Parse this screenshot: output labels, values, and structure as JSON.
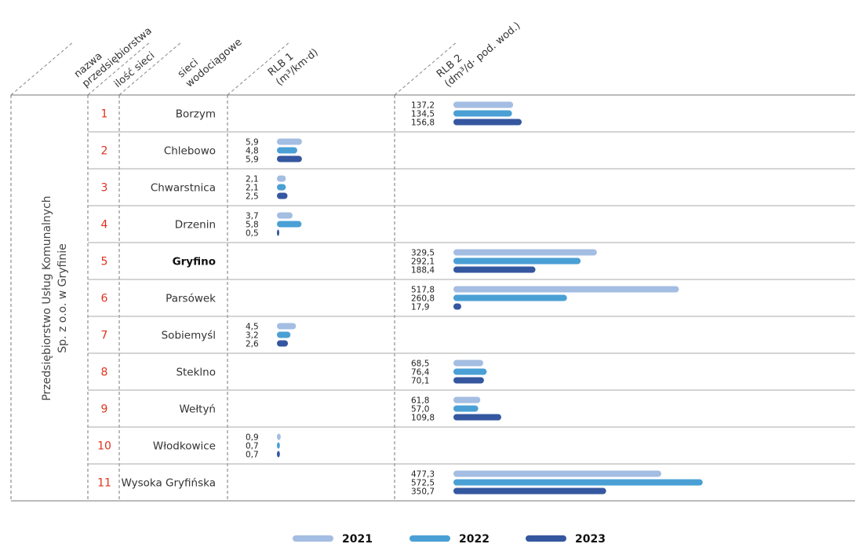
{
  "headers": {
    "company_line1": "nazwa",
    "company_line2": "przedsiębiorstwa",
    "count": "ilość sieci",
    "networks_line1": "sieci",
    "networks_line2": "wodociągowe",
    "rlb1_line1": "RLB 1",
    "rlb1_line2": "(m³/km·d)",
    "rlb2_line1": "RLB 2",
    "rlb2_line2": "(dm³/d· pod. wod.)"
  },
  "entity": {
    "line1": "Przedsiębiorstwo Usług Komunalnych",
    "line2": "Sp. z o.o. w Gryfinie"
  },
  "colors": {
    "2021": "#a4bde2",
    "2022": "#4aa0d5",
    "2023": "#34579f",
    "index": "#e0321e"
  },
  "chart_data": {
    "type": "bar",
    "orientation": "horizontal",
    "series_names": [
      "2021",
      "2022",
      "2023"
    ],
    "rows": [
      {
        "index": "1",
        "name": "Borzym",
        "bold": false,
        "rlb1": null,
        "rlb1_labels": null,
        "rlb2": [
          137.2,
          134.5,
          156.8
        ],
        "rlb2_labels": [
          "137,2",
          "134,5",
          "156,8"
        ]
      },
      {
        "index": "2",
        "name": "Chlebowo",
        "bold": false,
        "rlb1": [
          5.9,
          4.8,
          5.9
        ],
        "rlb1_labels": [
          "5,9",
          "4,8",
          "5,9"
        ],
        "rlb2": null,
        "rlb2_labels": null
      },
      {
        "index": "3",
        "name": "Chwarstnica",
        "bold": false,
        "rlb1": [
          2.1,
          2.1,
          2.5
        ],
        "rlb1_labels": [
          "2,1",
          "2,1",
          "2,5"
        ],
        "rlb2": null,
        "rlb2_labels": null
      },
      {
        "index": "4",
        "name": "Drzenin",
        "bold": false,
        "rlb1": [
          3.7,
          5.8,
          0.5
        ],
        "rlb1_labels": [
          "3,7",
          "5,8",
          "0,5"
        ],
        "rlb2": null,
        "rlb2_labels": null
      },
      {
        "index": "5",
        "name": "Gryfino",
        "bold": true,
        "rlb1": null,
        "rlb1_labels": null,
        "rlb2": [
          329.5,
          292.1,
          188.4
        ],
        "rlb2_labels": [
          "329,5",
          "292,1",
          "188,4"
        ]
      },
      {
        "index": "6",
        "name": "Parsówek",
        "bold": false,
        "rlb1": null,
        "rlb1_labels": null,
        "rlb2": [
          517.8,
          260.8,
          17.9
        ],
        "rlb2_labels": [
          "517,8",
          "260,8",
          "17,9"
        ]
      },
      {
        "index": "7",
        "name": "Sobiemyśl",
        "bold": false,
        "rlb1": [
          4.5,
          3.2,
          2.6
        ],
        "rlb1_labels": [
          "4,5",
          "3,2",
          "2,6"
        ],
        "rlb2": null,
        "rlb2_labels": null
      },
      {
        "index": "8",
        "name": "Steklno",
        "bold": false,
        "rlb1": null,
        "rlb1_labels": null,
        "rlb2": [
          68.5,
          76.4,
          70.1
        ],
        "rlb2_labels": [
          "68,5",
          "76,4",
          "70,1"
        ]
      },
      {
        "index": "9",
        "name": "Wełtyń",
        "bold": false,
        "rlb1": null,
        "rlb1_labels": null,
        "rlb2": [
          61.8,
          57.0,
          109.8
        ],
        "rlb2_labels": [
          "61,8",
          "57,0",
          "109,8"
        ]
      },
      {
        "index": "10",
        "name": "Włodkowice",
        "bold": false,
        "rlb1": [
          0.9,
          0.7,
          0.7
        ],
        "rlb1_labels": [
          "0,9",
          "0,7",
          "0,7"
        ],
        "rlb2": null,
        "rlb2_labels": null
      },
      {
        "index": "11",
        "name": "Wysoka Gryfińska",
        "bold": false,
        "rlb1": null,
        "rlb1_labels": null,
        "rlb2": [
          477.3,
          572.5,
          350.7
        ],
        "rlb2_labels": [
          "477,3",
          "572,5",
          "350,7"
        ]
      }
    ],
    "legend": [
      "2021",
      "2022",
      "2023"
    ],
    "legend_position": "bottom-center",
    "grid": false
  }
}
